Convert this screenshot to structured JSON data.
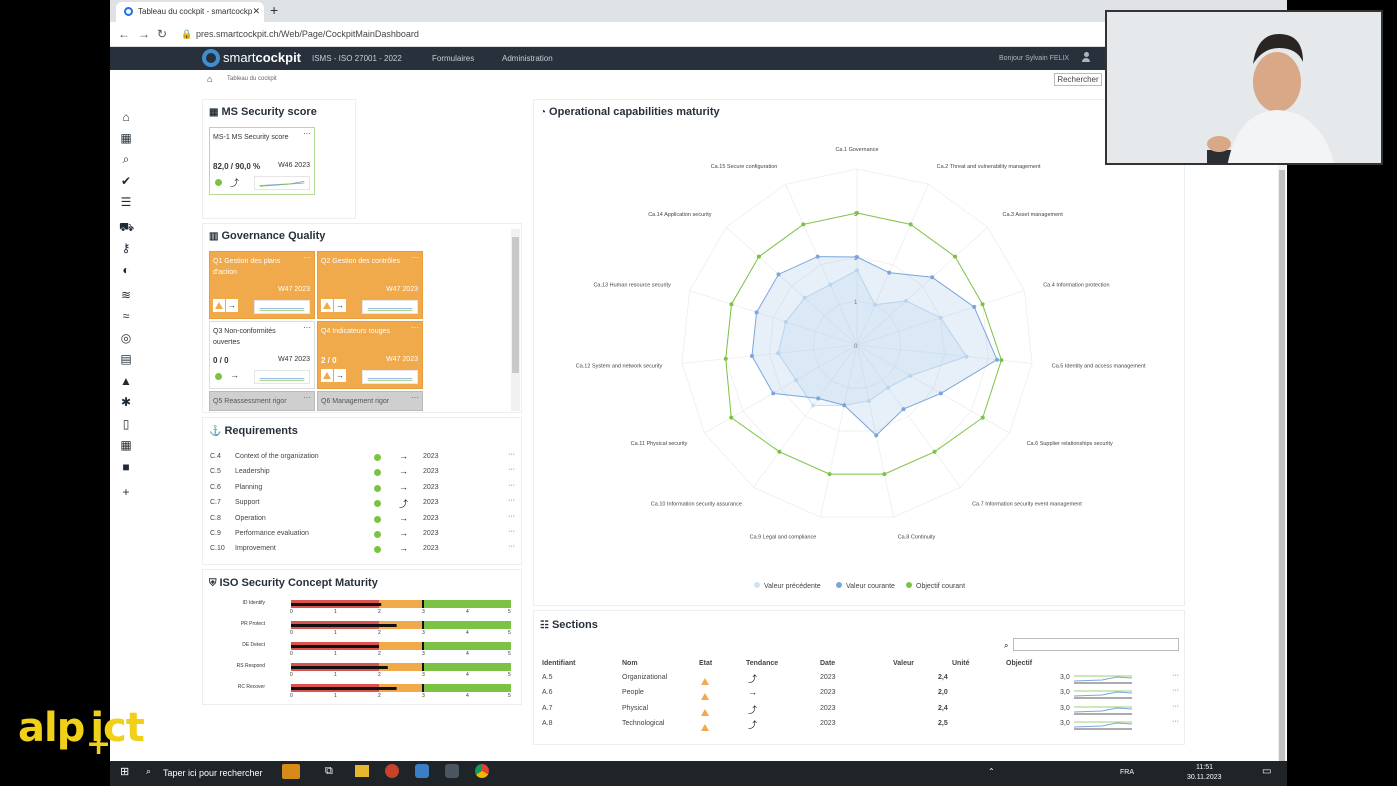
{
  "browser": {
    "tab_title": "Tableau du cockpit - smartcockp",
    "url": "pres.smartcockpit.ch/Web/Page/CockpitMainDashboard"
  },
  "appnav": {
    "logo_plain": "smart",
    "logo_bold": "cockpit",
    "menu": [
      "ISMS - ISO 27001 - 2022",
      "Formulaires",
      "Administration"
    ],
    "greeting": "Bonjour Sylvain FELIX"
  },
  "breadcrumb": "Tableau du cockpit",
  "search_label": "Rechercher",
  "ms_score": {
    "title": "MS Security score",
    "tile": {
      "label": "MS-1 MS Security score",
      "value": "82,0 /  90,0 %",
      "week": "W46 2023"
    }
  },
  "governance": {
    "title": "Governance Quality",
    "tiles": [
      {
        "label": "Q1 Gestion des plans d'action",
        "value": "",
        "week": "W47 2023",
        "status": "orange"
      },
      {
        "label": "Q2 Gestion des contrôles",
        "value": "",
        "week": "W47 2023",
        "status": "orange"
      },
      {
        "label": "Q3 Non-conformités ouvertes",
        "value": "0 /  0",
        "week": "W47 2023",
        "status": "white"
      },
      {
        "label": "Q4 Indicateurs rouges",
        "value": "2 /  0",
        "week": "W47 2023",
        "status": "orange"
      },
      {
        "label": "Q5 Reassessment rigor",
        "value": "",
        "week": "",
        "status": "grey"
      },
      {
        "label": "Q6 Management rigor",
        "value": "",
        "week": "",
        "status": "grey"
      }
    ]
  },
  "requirements": {
    "title": "Requirements",
    "rows": [
      {
        "id": "C.4",
        "name": "Context of the organization",
        "trend": "→",
        "year": "2023"
      },
      {
        "id": "C.5",
        "name": "Leadership",
        "trend": "→",
        "year": "2023"
      },
      {
        "id": "C.6",
        "name": "Planning",
        "trend": "→",
        "year": "2023"
      },
      {
        "id": "C.7",
        "name": "Support",
        "trend": "⤴",
        "year": "2023"
      },
      {
        "id": "C.8",
        "name": "Operation",
        "trend": "→",
        "year": "2023"
      },
      {
        "id": "C.9",
        "name": "Performance evaluation",
        "trend": "→",
        "year": "2023"
      },
      {
        "id": "C.10",
        "name": "Improvement",
        "trend": "→",
        "year": "2023"
      }
    ]
  },
  "iso_maturity": {
    "title": "ISO Security Concept Maturity",
    "rows": [
      {
        "label": "ID Identify",
        "value": 2.05,
        "target": 3
      },
      {
        "label": "PR Protect",
        "value": 2.4,
        "target": 3
      },
      {
        "label": "DE Detect",
        "value": 2.0,
        "target": 3
      },
      {
        "label": "RS Respond",
        "value": 2.2,
        "target": 3
      },
      {
        "label": "RC Recover",
        "value": 2.4,
        "target": 3
      }
    ],
    "scale": [
      "0",
      "1",
      "2",
      "3",
      "4",
      "5"
    ]
  },
  "radar": {
    "title": "Operational capabilities maturity",
    "legend": [
      "Valeur précédente",
      "Valeur courante",
      "Objectif courant"
    ],
    "ring_labels": [
      "0",
      "1",
      "2",
      "3"
    ],
    "colors": {
      "previous": "#a8cfee",
      "current": "#7aa6dd",
      "target": "#7cc244"
    }
  },
  "chart_data": {
    "type": "radar",
    "title": "Operational capabilities maturity",
    "categories": [
      "Ca.1 Governance",
      "Ca.2 Threat and vulnerability management",
      "Ca.3 Asset management",
      "Ca.4 Information protection",
      "Ca.5 Identity and access management",
      "Ca.6 Supplier relationships security",
      "Ca.7 Information security event management",
      "Ca.8 Continuity",
      "Ca.9 Legal and compliance",
      "Ca.10 Information security assurance",
      "Ca.11 Physical security",
      "Ca.12 System and network security",
      "Ca.13 Human resource security",
      "Ca.14 Application security",
      "Ca.15 Secure configuration"
    ],
    "rmax": 4,
    "series": [
      {
        "name": "Valeur précédente",
        "values": [
          1.7,
          1.0,
          1.5,
          2.0,
          2.5,
          1.4,
          1.2,
          1.3,
          1.4,
          1.7,
          1.6,
          1.8,
          1.7,
          1.6,
          1.5
        ]
      },
      {
        "name": "Valeur courante",
        "values": [
          2.0,
          1.8,
          2.3,
          2.8,
          3.2,
          2.2,
          1.8,
          2.1,
          1.4,
          1.5,
          2.2,
          2.4,
          2.4,
          2.4,
          2.2
        ]
      },
      {
        "name": "Objectif courant",
        "values": [
          3,
          3,
          3,
          3,
          3.3,
          3.3,
          3,
          3,
          3,
          3,
          3.3,
          3,
          3,
          3,
          3
        ]
      }
    ]
  },
  "sections": {
    "title": "Sections",
    "headers": [
      "Identifiant",
      "Nom",
      "Etat",
      "Tendance",
      "Date",
      "Valeur",
      "Unité",
      "Objectif"
    ],
    "rows": [
      {
        "id": "A.5",
        "name": "Organizational",
        "trend": "⤴",
        "date": "2023",
        "value": "2,4",
        "target": "3,0"
      },
      {
        "id": "A.6",
        "name": "People",
        "trend": "→",
        "date": "2023",
        "value": "2,0",
        "target": "3,0"
      },
      {
        "id": "A.7",
        "name": "Physical",
        "trend": "⤴",
        "date": "2023",
        "value": "2,4",
        "target": "3,0"
      },
      {
        "id": "A.8",
        "name": "Technological",
        "trend": "⤴",
        "date": "2023",
        "value": "2,5",
        "target": "3,0"
      }
    ]
  },
  "taskbar": {
    "search": "Taper ici pour rechercher",
    "lang": "FRA",
    "time": "11:51",
    "date": "30.11.2023"
  },
  "watermark": "alp ict"
}
